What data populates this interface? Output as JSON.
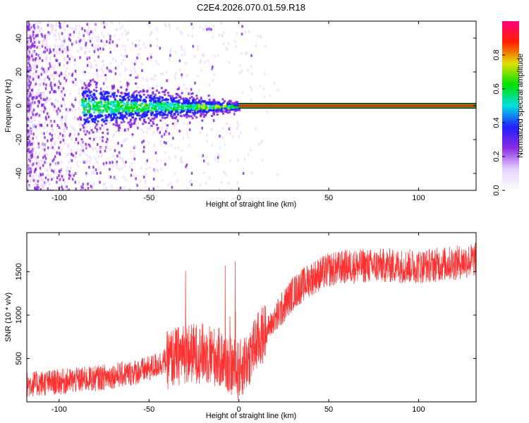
{
  "title": "C2E4.2026.070.01.59.R18",
  "chart_data": [
    {
      "type": "heatmap",
      "xlabel": "Height of straight line (km)",
      "ylabel": "Frequency (Hz)",
      "xlim": [
        -118,
        132
      ],
      "ylim": [
        -50,
        50
      ],
      "xticks": [
        -100,
        -50,
        0,
        50,
        100
      ],
      "yticks": [
        -40,
        -20,
        0,
        20,
        40
      ],
      "colorbar": {
        "label": "Normalized spectral amplitude",
        "ticks": [
          0.0,
          0.2,
          0.4,
          0.6,
          0.8
        ],
        "range": [
          0,
          1
        ],
        "colormap": [
          "#ffffff",
          "#e6d2ff",
          "#8a2be2",
          "#2020ff",
          "#00e0e0",
          "#00e000",
          "#e0e000",
          "#ff2000",
          "#ff0080"
        ]
      },
      "signal_band": {
        "frequency": 0,
        "x_start": 0,
        "x_end": 132,
        "dominant_color": "#ff2020"
      }
    },
    {
      "type": "line",
      "xlabel": "Height of straight line (km)",
      "ylabel": "SNR (10 * v/v)",
      "xlim": [
        -118,
        132
      ],
      "ylim": [
        0,
        1950
      ],
      "xticks": [
        -100,
        -50,
        0,
        50,
        100
      ],
      "yticks": [
        500,
        1000,
        1500
      ],
      "series": [
        {
          "color": "#ff3030",
          "x": [
            -118,
            -100,
            -80,
            -60,
            -50,
            -40,
            -30,
            -20,
            -10,
            -5,
            0,
            5,
            10,
            20,
            30,
            40,
            50,
            60,
            80,
            100,
            120,
            132
          ],
          "y": [
            200,
            230,
            270,
            330,
            380,
            480,
            560,
            560,
            500,
            420,
            350,
            500,
            680,
            950,
            1250,
            1420,
            1520,
            1560,
            1570,
            1560,
            1600,
            1640
          ]
        }
      ]
    }
  ]
}
